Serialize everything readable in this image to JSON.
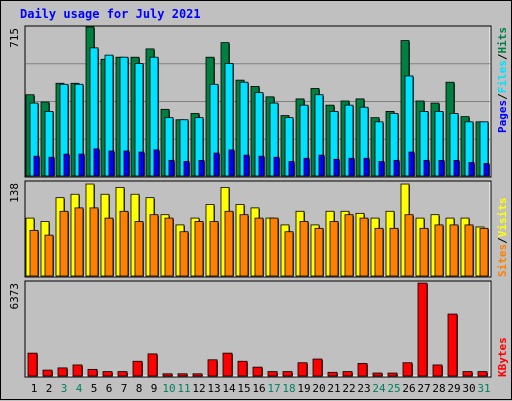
{
  "chart_data": {
    "type": "bar",
    "title": "Daily usage for July 2021",
    "categories": [
      "1",
      "2",
      "3",
      "4",
      "5",
      "6",
      "7",
      "8",
      "9",
      "10",
      "11",
      "12",
      "13",
      "14",
      "15",
      "16",
      "17",
      "18",
      "19",
      "20",
      "21",
      "22",
      "23",
      "24",
      "25",
      "26",
      "27",
      "28",
      "29",
      "30",
      "31"
    ],
    "weekend_days": [
      "3",
      "4",
      "10",
      "11",
      "17",
      "18",
      "24",
      "25",
      "31"
    ],
    "panels": [
      {
        "name": "hits-files-pages",
        "max_label": "715",
        "ymax": 715,
        "series": [
          {
            "name": "Hits",
            "color": "#008040",
            "values": [
              390,
              355,
              445,
              445,
              715,
              560,
              570,
              570,
              610,
              320,
              270,
              300,
              570,
              640,
              460,
              430,
              380,
              290,
              370,
              420,
              340,
              360,
              370,
              280,
              310,
              650,
              360,
              350,
              450,
              285,
              260
            ]
          },
          {
            "name": "Files",
            "color": "#00e0ff",
            "values": [
              350,
              310,
              440,
              440,
              615,
              580,
              570,
              540,
              570,
              280,
              270,
              280,
              440,
              540,
              450,
              400,
              350,
              280,
              340,
              390,
              310,
              340,
              330,
              260,
              300,
              480,
              310,
              310,
              300,
              260,
              260
            ]
          },
          {
            "name": "Pages",
            "color": "#0000ff",
            "values": [
              95,
              90,
              105,
              105,
              130,
              120,
              120,
              115,
              125,
              75,
              70,
              75,
              110,
              125,
              100,
              95,
              90,
              70,
              85,
              100,
              80,
              85,
              85,
              70,
              75,
              115,
              75,
              75,
              75,
              65,
              60
            ]
          }
        ]
      },
      {
        "name": "visits-sites",
        "max_label": "138",
        "ymax": 138,
        "series": [
          {
            "name": "Visits",
            "color": "#ffff00",
            "values": [
              85,
              80,
              115,
              120,
              135,
              120,
              130,
              120,
              115,
              90,
              75,
              85,
              105,
              130,
              105,
              100,
              85,
              75,
              95,
              75,
              95,
              95,
              92,
              85,
              95,
              135,
              85,
              90,
              85,
              85,
              72
            ]
          },
          {
            "name": "Sites",
            "color": "#ff8000",
            "values": [
              67,
              60,
              95,
              100,
              100,
              85,
              95,
              80,
              90,
              85,
              65,
              80,
              80,
              95,
              90,
              85,
              85,
              65,
              80,
              70,
              80,
              90,
              85,
              70,
              70,
              90,
              70,
              75,
              75,
              75,
              70
            ]
          }
        ]
      },
      {
        "name": "kbytes",
        "max_label": "6373",
        "ymax": 6373,
        "series": [
          {
            "name": "KBytes",
            "color": "#ff0000",
            "values": [
              1550,
              400,
              550,
              750,
              450,
              300,
              300,
              1000,
              1500,
              150,
              150,
              150,
              1100,
              1550,
              1000,
              600,
              300,
              300,
              900,
              1150,
              250,
              300,
              850,
              200,
              200,
              900,
              6300,
              750,
              4200,
              300,
              300
            ]
          }
        ]
      }
    ],
    "legend_right": [
      "Pages",
      "/",
      "Files",
      "/",
      "Hits"
    ],
    "legend_mid": [
      "Sites",
      "/",
      "Visits"
    ],
    "legend_bottom": [
      "KBytes"
    ],
    "colors": {
      "title": "#0000ff",
      "background": "#c0c0c0",
      "plot_bg": "#c0c0c0",
      "weekday_label": "#000000",
      "weekend_label": "#00805f",
      "gridline": "#808080"
    }
  }
}
